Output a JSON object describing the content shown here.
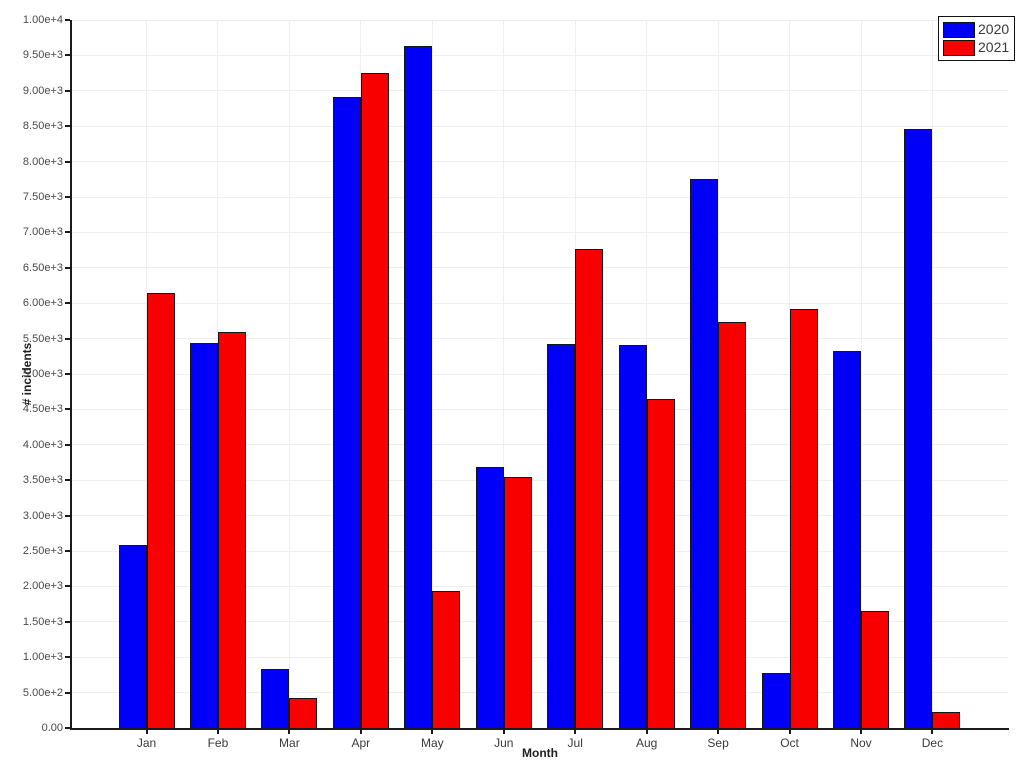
{
  "chart_data": {
    "type": "bar",
    "title": "",
    "xlabel": "Month",
    "ylabel": "# incidents",
    "categories": [
      "Jan",
      "Feb",
      "Mar",
      "Apr",
      "May",
      "Jun",
      "Jul",
      "Aug",
      "Sep",
      "Oct",
      "Nov",
      "Dec"
    ],
    "series": [
      {
        "name": "2020",
        "color": "#0000f8",
        "values": [
          2580,
          5440,
          840,
          8910,
          9640,
          3690,
          5430,
          5410,
          7750,
          780,
          5330,
          8460
        ]
      },
      {
        "name": "2021",
        "color": "#f80000",
        "values": [
          6150,
          5600,
          430,
          9250,
          1940,
          3550,
          6770,
          4650,
          5740,
          5920,
          1650,
          230
        ]
      }
    ],
    "ylim": [
      0,
      10000
    ],
    "y_tick_step": 500,
    "y_tick_labels": [
      "0.00",
      "5.00e+2",
      "1.00e+3",
      "1.50e+3",
      "2.00e+3",
      "2.50e+3",
      "3.00e+3",
      "3.50e+3",
      "4.00e+3",
      "4.50e+3",
      "5.00e+3",
      "5.50e+3",
      "6.00e+3",
      "6.50e+3",
      "7.00e+3",
      "7.50e+3",
      "8.00e+3",
      "8.50e+3",
      "9.00e+3",
      "9.50e+3",
      "1.00e+4"
    ],
    "grid": true,
    "legend_position": "top-right"
  }
}
